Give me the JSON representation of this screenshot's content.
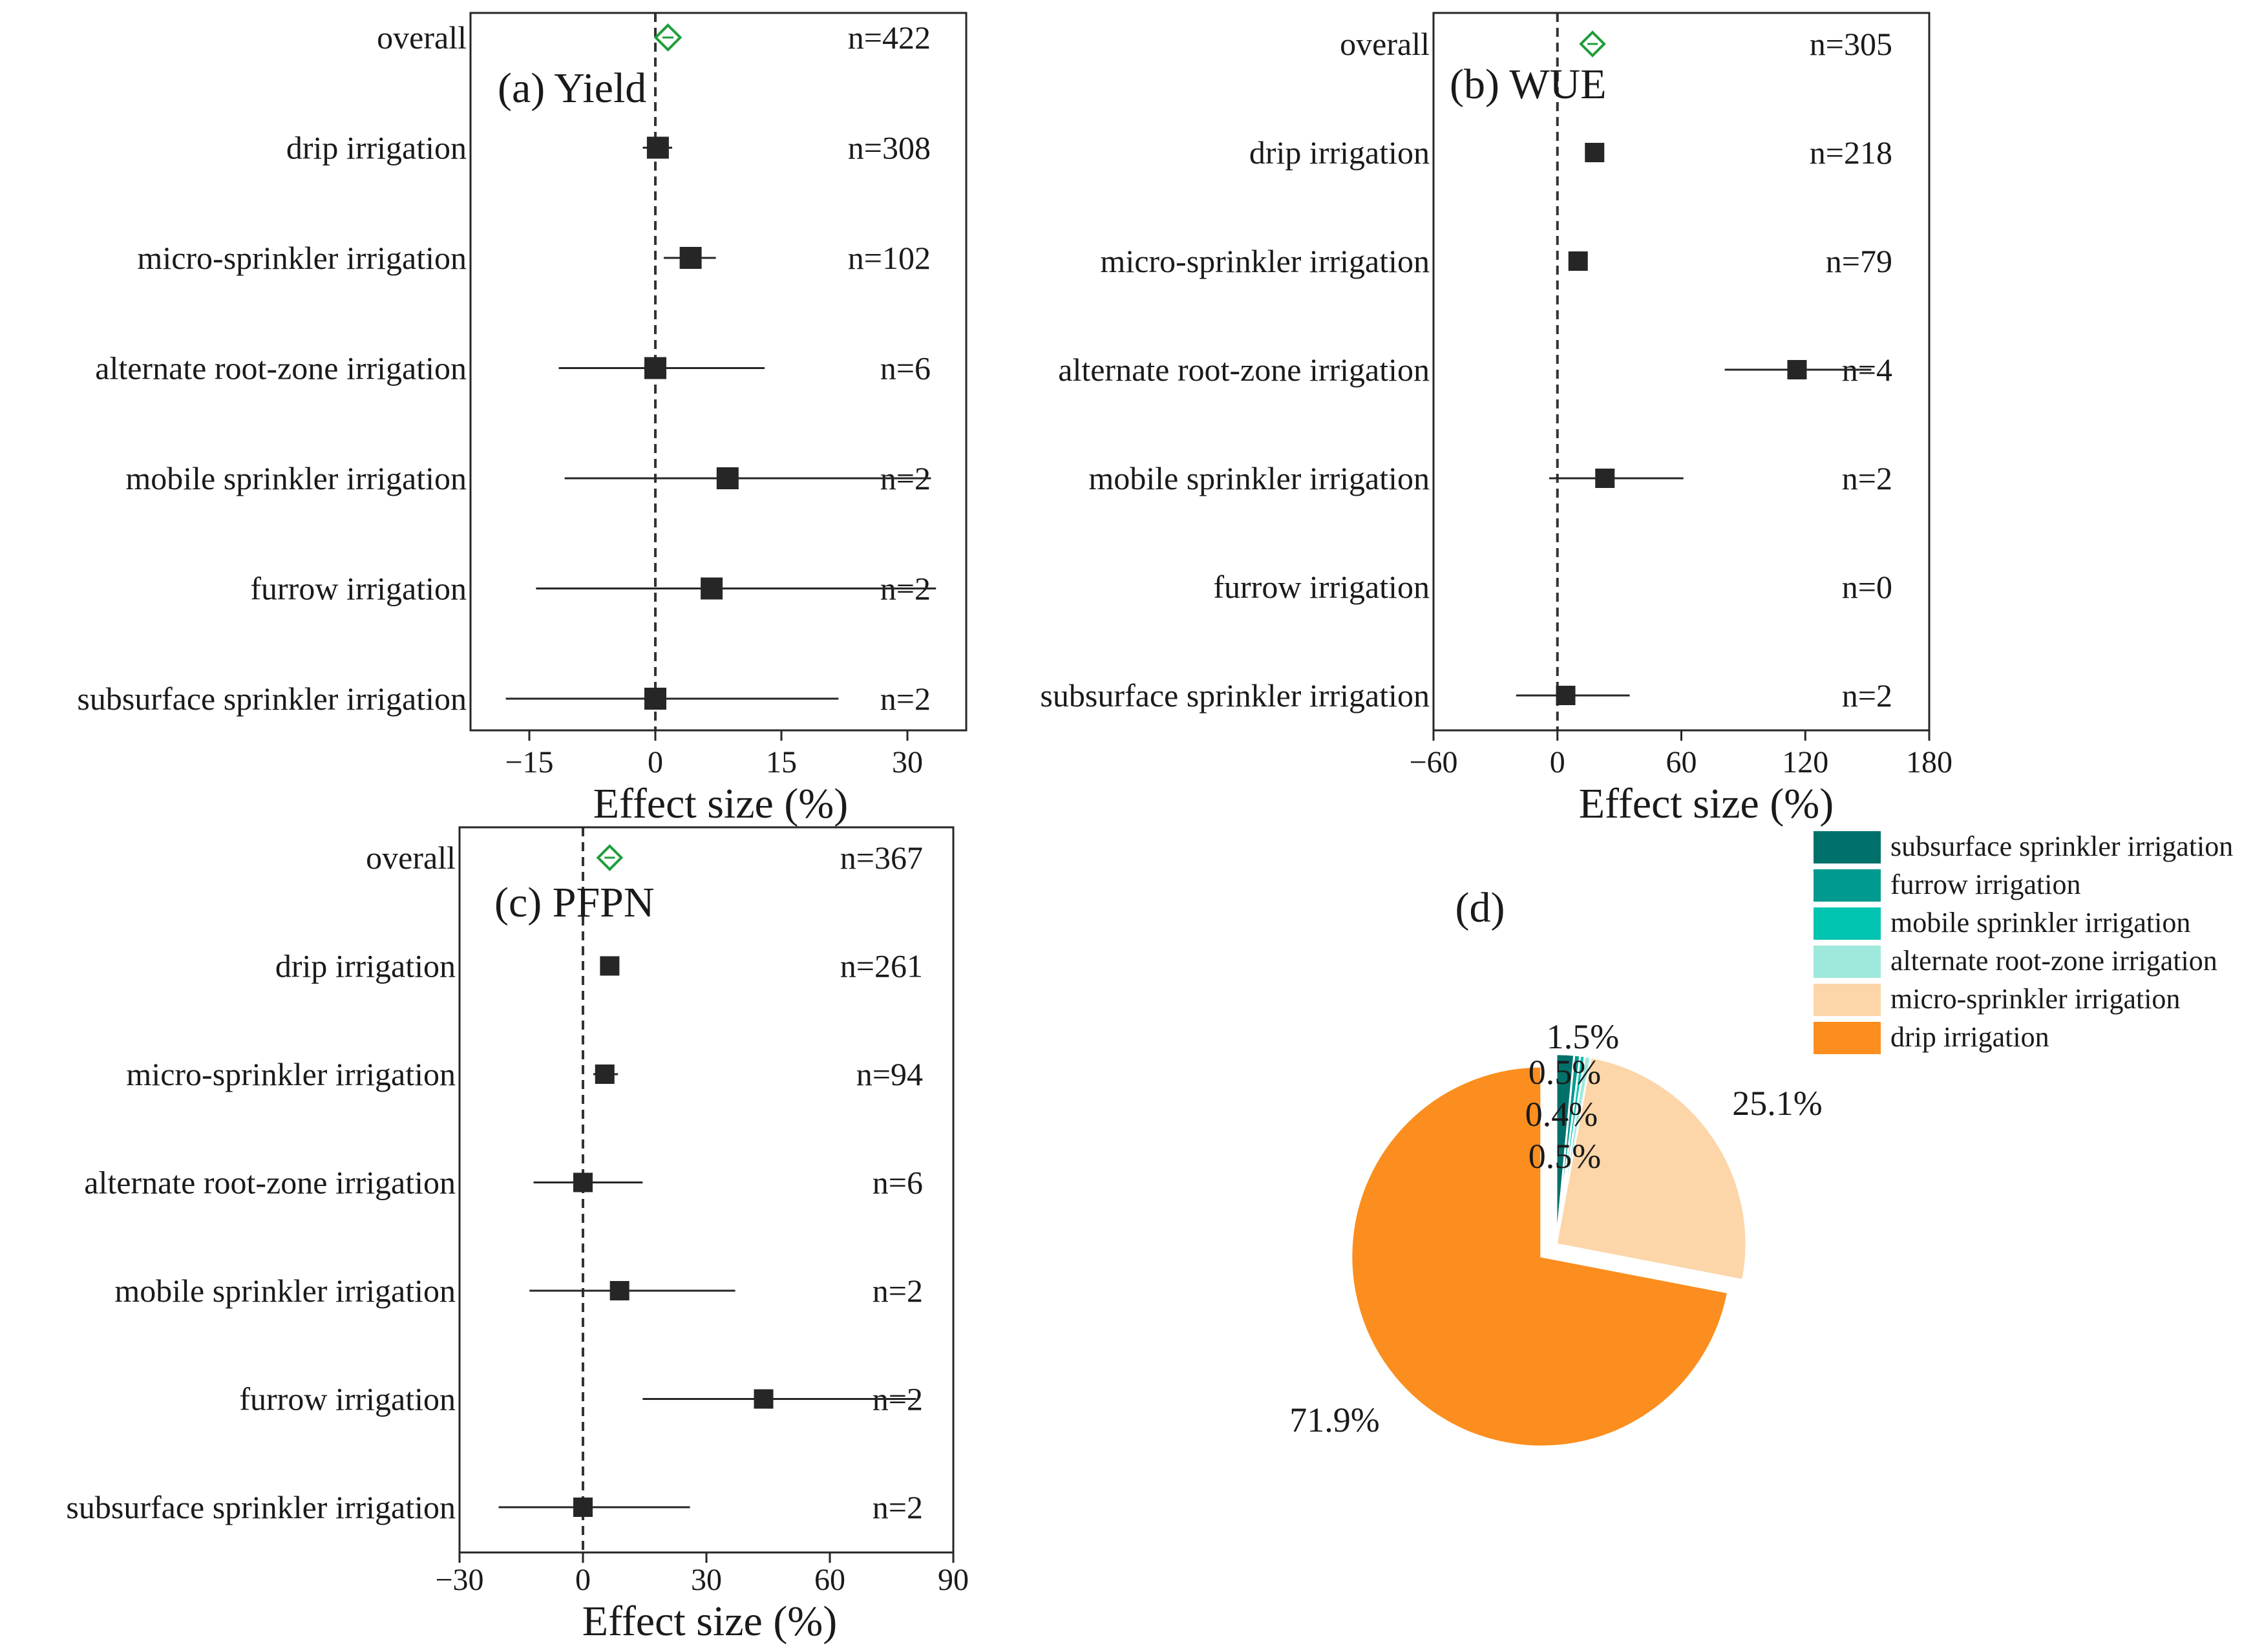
{
  "colors": {
    "point": "#262626",
    "overall": "#1e9e3a",
    "zero_line": "#333333",
    "axis": "#262626"
  },
  "chart_data": [
    {
      "panel": "a",
      "type": "forest",
      "title": "(a) Yield",
      "xlabel": "Effect size (%)",
      "xlim": [
        -22,
        37
      ],
      "xticks": [
        -15,
        0,
        15,
        30
      ],
      "xtick_labels": [
        "−15",
        "0",
        "15",
        "30"
      ],
      "rows": [
        {
          "label": "overall",
          "n": "n=422",
          "mean": 1.5,
          "low": null,
          "high": null,
          "kind": "overall"
        },
        {
          "label": "drip irrigation",
          "n": "n=308",
          "mean": 0.3,
          "low": -1.5,
          "high": 2.0,
          "kind": "group"
        },
        {
          "label": "micro-sprinkler irrigation",
          "n": "n=102",
          "mean": 4.2,
          "low": 1.0,
          "high": 7.2,
          "kind": "group"
        },
        {
          "label": "alternate root-zone irrigation",
          "n": "n=6",
          "mean": 0.0,
          "low": -11.5,
          "high": 13.0,
          "kind": "group"
        },
        {
          "label": "mobile sprinkler irrigation",
          "n": "n=2",
          "mean": 8.6,
          "low": -10.8,
          "high": 32.8,
          "kind": "group"
        },
        {
          "label": "furrow irrigation",
          "n": "n=2",
          "mean": 6.7,
          "low": -14.2,
          "high": 33.4,
          "kind": "group"
        },
        {
          "label": "subsurface sprinkler irrigation",
          "n": "n=2",
          "mean": 0.0,
          "low": -17.8,
          "high": 21.8,
          "kind": "group"
        }
      ]
    },
    {
      "panel": "b",
      "type": "forest",
      "title": "(b) WUE",
      "xlabel": "Effect size (%)",
      "xlim": [
        -60,
        180
      ],
      "xticks": [
        -60,
        0,
        60,
        120,
        180
      ],
      "xtick_labels": [
        "−60",
        "0",
        "60",
        "120",
        "180"
      ],
      "rows": [
        {
          "label": "overall",
          "n": "n=305",
          "mean": 17,
          "low": null,
          "high": null,
          "kind": "overall"
        },
        {
          "label": "drip irrigation",
          "n": "n=218",
          "mean": 18,
          "low": 15,
          "high": 21,
          "kind": "group"
        },
        {
          "label": "micro-sprinkler irrigation",
          "n": "n=79",
          "mean": 10,
          "low": 7,
          "high": 13,
          "kind": "group"
        },
        {
          "label": "alternate root-zone irrigation",
          "n": "n=4",
          "mean": 116,
          "low": 81,
          "high": 152,
          "kind": "group"
        },
        {
          "label": "mobile sprinkler irrigation",
          "n": "n=2",
          "mean": 23,
          "low": -4,
          "high": 61,
          "kind": "group"
        },
        {
          "label": "furrow irrigation",
          "n": "n=0",
          "mean": null,
          "low": null,
          "high": null,
          "kind": "group"
        },
        {
          "label": "subsurface sprinkler irrigation",
          "n": "n=2",
          "mean": 4,
          "low": -20,
          "high": 35,
          "kind": "group"
        }
      ]
    },
    {
      "panel": "c",
      "type": "forest",
      "title": "(c) PFPN",
      "xlabel": "Effect size (%)",
      "xlim": [
        -30,
        90
      ],
      "xticks": [
        -30,
        0,
        30,
        60,
        90
      ],
      "xtick_labels": [
        "−30",
        "0",
        "30",
        "60",
        "90"
      ],
      "rows": [
        {
          "label": "overall",
          "n": "n=367",
          "mean": 6.5,
          "low": null,
          "high": null,
          "kind": "overall"
        },
        {
          "label": "drip irrigation",
          "n": "n=261",
          "mean": 6.5,
          "low": 5.0,
          "high": 8.0,
          "kind": "group"
        },
        {
          "label": "micro-sprinkler irrigation",
          "n": "n=94",
          "mean": 5.3,
          "low": 2.5,
          "high": 8.5,
          "kind": "group"
        },
        {
          "label": "alternate root-zone irrigation",
          "n": "n=6",
          "mean": 0.0,
          "low": -12.0,
          "high": 14.5,
          "kind": "group"
        },
        {
          "label": "mobile sprinkler irrigation",
          "n": "n=2",
          "mean": 8.9,
          "low": -13.0,
          "high": 37.0,
          "kind": "group"
        },
        {
          "label": "furrow irrigation",
          "n": "n=2",
          "mean": 43.9,
          "low": 14.5,
          "high": 81.0,
          "kind": "group"
        },
        {
          "label": "subsurface sprinkler irrigation",
          "n": "n=2",
          "mean": 0.0,
          "low": -20.5,
          "high": 26.0,
          "kind": "group"
        }
      ]
    },
    {
      "panel": "d",
      "type": "pie",
      "title": "(d)",
      "slices": [
        {
          "label": "drip irrigation",
          "value": 71.9,
          "text": "71.9%",
          "color": "#fb8e1e"
        },
        {
          "label": "micro-sprinkler irrigation",
          "value": 25.1,
          "text": "25.1%",
          "color": "#fcd5a8"
        },
        {
          "label": "alternate root-zone irrigation",
          "value": 0.5,
          "text": "0.5%",
          "color": "#9ee8dc"
        },
        {
          "label": "mobile sprinkler irrigation",
          "value": 0.4,
          "text": "0.4%",
          "color": "#00c4b0"
        },
        {
          "label": "furrow irrigation",
          "value": 0.5,
          "text": "0.5%",
          "color": "#009a8e"
        },
        {
          "label": "subsurface sprinkler irrigation",
          "value": 1.5,
          "text": "1.5%",
          "color": "#00716a"
        }
      ],
      "legend": [
        {
          "label": "subsurface sprinkler irrigation",
          "color": "#00716a"
        },
        {
          "label": "furrow irrigation",
          "color": "#009a8e"
        },
        {
          "label": "mobile sprinkler irrigation",
          "color": "#00c4b0"
        },
        {
          "label": "alternate root-zone irrigation",
          "color": "#9ee8dc"
        },
        {
          "label": "micro-sprinkler irrigation",
          "color": "#fcd5a8"
        },
        {
          "label": "drip irrigation",
          "color": "#fb8e1e"
        }
      ]
    }
  ]
}
